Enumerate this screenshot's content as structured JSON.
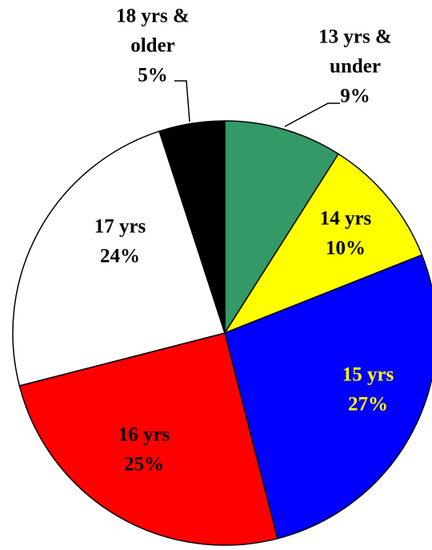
{
  "chart_data": {
    "type": "pie",
    "categories": [
      [
        "13 yrs &",
        "under"
      ],
      [
        "14 yrs"
      ],
      [
        "15 yrs"
      ],
      [
        "16 yrs"
      ],
      [
        "17 yrs"
      ],
      [
        "18 yrs &",
        "older"
      ]
    ],
    "values": [
      9,
      10,
      27,
      25,
      24,
      5
    ],
    "value_labels": [
      "9%",
      "10%",
      "27%",
      "25%",
      "24%",
      "5%"
    ],
    "colors": [
      "#339966",
      "#ffff00",
      "#0000ff",
      "#ff0000",
      "#ffffff",
      "#000000"
    ],
    "label_colors": [
      "#000000",
      "#000000",
      "#ffff00",
      "#000000",
      "#000000",
      "#000000"
    ]
  }
}
